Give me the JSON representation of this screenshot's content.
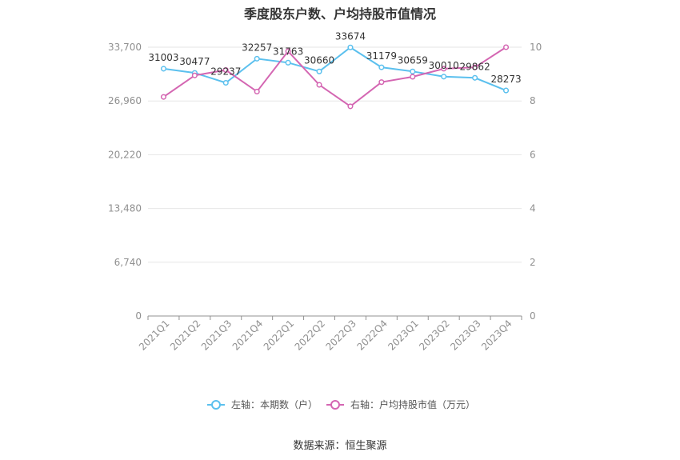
{
  "title": "季度股东户数、户均持股市值情况",
  "source": "数据来源：恒生聚源",
  "colors": {
    "left_series": "#5bc0ee",
    "right_series": "#d466b2",
    "grid": "#e6e6e6",
    "axis": "#909090"
  },
  "chart_data": {
    "type": "line",
    "categories": [
      "2021Q1",
      "2021Q2",
      "2021Q3",
      "2021Q4",
      "2022Q1",
      "2022Q2",
      "2022Q3",
      "2022Q4",
      "2023Q1",
      "2023Q2",
      "2023Q3",
      "2023Q4"
    ],
    "y_left": {
      "ylim": [
        0,
        33700
      ],
      "ticks": [
        0,
        6740,
        13480,
        20220,
        26960,
        33700
      ],
      "tick_labels": [
        "0",
        "6,740",
        "13,480",
        "20,220",
        "26,960",
        "33,700"
      ]
    },
    "y_right": {
      "ylim": [
        0,
        10
      ],
      "ticks": [
        0,
        2,
        4,
        6,
        8,
        10
      ],
      "tick_labels": [
        "0",
        "2",
        "4",
        "6",
        "8",
        "10"
      ]
    },
    "series": [
      {
        "name": "左轴：本期数（户）",
        "axis": "left",
        "values": [
          31003,
          30477,
          29237,
          32257,
          31763,
          30660,
          33674,
          31179,
          30659,
          30010,
          29862,
          28273
        ],
        "labels": [
          "31003",
          "30477",
          "29237",
          "32257",
          "31763",
          "30660",
          "33674",
          "31179",
          "30659",
          "30010",
          "29862",
          "28273"
        ]
      },
      {
        "name": "右轴：户均持股市值（万元）",
        "axis": "right",
        "values": [
          8.15,
          8.95,
          9.15,
          8.35,
          9.85,
          8.6,
          7.8,
          8.7,
          8.9,
          9.2,
          9.25,
          10.0
        ]
      }
    ],
    "legend_position": "bottom",
    "grid": true
  }
}
